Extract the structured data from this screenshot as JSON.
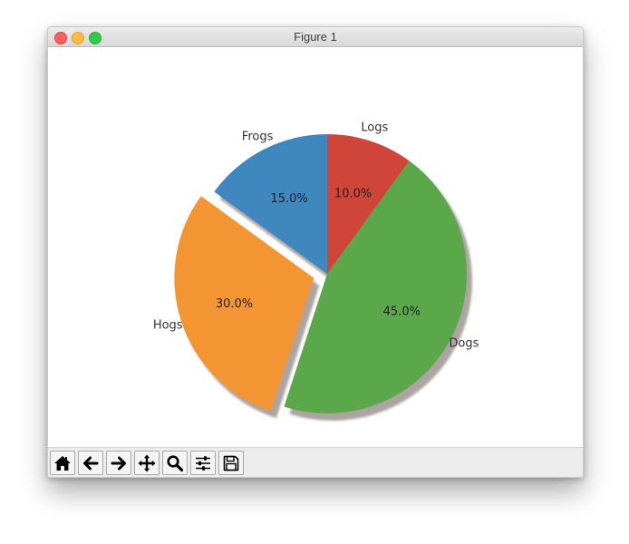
{
  "window": {
    "title": "Figure 1"
  },
  "toolbar": {
    "buttons": [
      {
        "name": "home-button",
        "icon": "home-icon"
      },
      {
        "name": "back-button",
        "icon": "arrow-left-icon"
      },
      {
        "name": "forward-button",
        "icon": "arrow-right-icon"
      },
      {
        "name": "pan-button",
        "icon": "move-icon"
      },
      {
        "name": "zoom-button",
        "icon": "magnifier-icon"
      },
      {
        "name": "configure-subplots-button",
        "icon": "sliders-icon"
      },
      {
        "name": "save-button",
        "icon": "floppy-disk-icon"
      }
    ]
  },
  "chart_data": {
    "type": "pie",
    "labels": [
      "Frogs",
      "Hogs",
      "Dogs",
      "Logs"
    ],
    "values": [
      15,
      30,
      45,
      10
    ],
    "autopct": [
      "15.0%",
      "30.0%",
      "45.0%",
      "10.0%"
    ],
    "explode": [
      0,
      0.1,
      0,
      0
    ],
    "start_angle": 90,
    "shadow": true,
    "colors": [
      "#3e87bf",
      "#f39533",
      "#5aa849",
      "#d0453a"
    ]
  }
}
